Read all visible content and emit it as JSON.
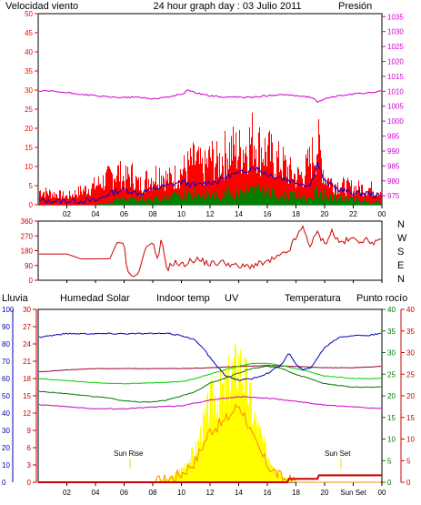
{
  "colors": {
    "wind": "#ff0000",
    "gust": "#0000cc",
    "wind_dark": "#008000",
    "pressure": "#cc00cc",
    "direction": "#cc0000",
    "rain": "#cc0000",
    "humidity": "#0000bb",
    "solar": "#00cc00",
    "indoor": "#990033",
    "uv": "#ff8800",
    "temperature": "#007700",
    "dewpoint": "#cc00cc",
    "sun_bar": "#ffff00",
    "marker": "#ffcc00"
  },
  "header": {
    "title": "24 hour graph day : 03 Julio 2011",
    "wind_label": "Velocidad viento",
    "pressure_label": "Presión"
  },
  "direction_letters": [
    "N",
    "W",
    "S",
    "E",
    "N"
  ],
  "legend": {
    "rain": "Lluvia",
    "humidity": "Humedad",
    "solar": "Solar",
    "indoor": "Indoor temp",
    "uv": "UV",
    "temperature": "Temperatura",
    "dewpoint": "Punto rocío"
  },
  "annotations": {
    "sun_rise": "Sun Rise",
    "sun_set": "Sun Set",
    "sun_set_axis": "Sun Set"
  },
  "chart_data": [
    {
      "type": "line",
      "title": "24 hour graph day : 03 Julio 2011",
      "x_ticks": [
        "02",
        "04",
        "06",
        "08",
        "10",
        "12",
        "14",
        "16",
        "18",
        "20",
        "22",
        "00"
      ],
      "y_left_ticks": [
        "0",
        "5",
        "10",
        "15",
        "20",
        "25",
        "30",
        "35",
        "40",
        "45",
        "50"
      ],
      "y_right_ticks": [
        "975",
        "980",
        "985",
        "990",
        "995",
        "1000",
        "1005",
        "1010",
        "1015",
        "1020",
        "1025",
        "1030",
        "1035"
      ],
      "ylim_left": [
        0,
        50
      ],
      "ylim_right": [
        972,
        1036
      ],
      "series": [
        {
          "name": "Velocidad viento",
          "x": [
            0,
            1,
            2,
            3,
            4,
            5,
            5.5,
            6,
            6.5,
            7,
            7.5,
            8,
            8.5,
            9,
            9.5,
            10,
            10.5,
            11,
            11.5,
            12,
            12.5,
            13,
            13.5,
            14,
            14.5,
            15,
            15.5,
            16,
            16.5,
            17,
            17.5,
            18,
            18.5,
            19,
            19.5,
            20,
            20.5,
            21,
            22,
            23,
            24
          ],
          "values": [
            5,
            4,
            3,
            5,
            7,
            10,
            12,
            9,
            11,
            7,
            9,
            10,
            12,
            9,
            10,
            12,
            14,
            16,
            12,
            17,
            15,
            18,
            20,
            19,
            21,
            24,
            20,
            19,
            16,
            15,
            12,
            10,
            11,
            16,
            22,
            10,
            8,
            7,
            6,
            6,
            5
          ]
        },
        {
          "name": "gust",
          "x": [
            0,
            2,
            4,
            5,
            6,
            7,
            8,
            9,
            10,
            11,
            12,
            12.5,
            13,
            13.5,
            14,
            14.5,
            15,
            15.5,
            16,
            17,
            18,
            19,
            19.5,
            20,
            21,
            22,
            23,
            24
          ],
          "values": [
            1,
            1,
            1,
            3,
            4,
            3,
            4,
            5,
            6,
            5,
            6,
            6,
            7,
            8,
            8,
            9,
            10,
            9,
            8,
            7,
            6,
            5,
            11,
            6,
            4,
            3,
            3,
            2
          ]
        },
        {
          "name": "wind avg",
          "x": [
            0,
            2,
            4,
            5,
            6,
            7,
            8,
            9,
            10,
            11,
            12,
            13,
            14,
            15,
            16,
            17,
            18,
            19,
            19.5,
            20,
            21,
            22,
            23,
            24
          ],
          "values": [
            0,
            0,
            0,
            1,
            2,
            2,
            2,
            3,
            3,
            4,
            3,
            4,
            4,
            5,
            4,
            3,
            3,
            2,
            5,
            3,
            2,
            2,
            1,
            1
          ]
        },
        {
          "name": "Presión",
          "x": [
            0,
            1,
            2,
            3,
            4,
            5,
            6,
            7,
            8,
            9,
            10,
            10.5,
            11,
            12,
            13,
            14,
            15,
            16,
            17,
            18,
            19,
            19.5,
            20,
            21,
            22,
            23,
            24
          ],
          "values": [
            1010,
            1010,
            1009.5,
            1009,
            1008.5,
            1008,
            1008,
            1008,
            1007.5,
            1008,
            1009,
            1010.5,
            1009.5,
            1008.5,
            1008,
            1008,
            1008,
            1008.5,
            1009,
            1008.5,
            1008,
            1006.5,
            1007.5,
            1008.5,
            1009,
            1009.5,
            1010
          ]
        }
      ]
    },
    {
      "type": "line",
      "y_ticks": [
        "0",
        "90",
        "180",
        "270",
        "360"
      ],
      "ylim": [
        0,
        360
      ],
      "series": [
        {
          "name": "wind direction",
          "x": [
            0,
            2,
            3,
            4,
            5,
            5.5,
            6,
            6.2,
            6.6,
            7,
            7.5,
            8,
            8.3,
            8.6,
            9,
            9.5,
            10,
            11,
            12,
            13,
            14,
            15,
            16,
            17,
            17.5,
            18,
            18.5,
            19,
            19.5,
            20,
            20.5,
            21,
            22,
            23,
            24
          ],
          "values": [
            160,
            160,
            130,
            130,
            130,
            230,
            225,
            60,
            20,
            40,
            200,
            230,
            110,
            240,
            70,
            110,
            90,
            130,
            100,
            110,
            80,
            90,
            110,
            150,
            180,
            260,
            320,
            210,
            290,
            220,
            300,
            230,
            250,
            240,
            230
          ]
        }
      ]
    },
    {
      "type": "line",
      "x_ticks": [
        "02",
        "04",
        "06",
        "08",
        "10",
        "12",
        "14",
        "16",
        "18",
        "20",
        "Sun Set",
        "00"
      ],
      "y_left_ticks": [
        "0",
        "10",
        "20",
        "30",
        "40",
        "50",
        "60",
        "70",
        "80",
        "90",
        "100"
      ],
      "y_rain_ticks": [
        "0",
        "3",
        "6",
        "9",
        "12",
        "15",
        "18",
        "21",
        "24",
        "27",
        "30"
      ],
      "y_temp_ticks": [
        "0",
        "5",
        "10",
        "15",
        "20",
        "25",
        "30",
        "35",
        "40"
      ],
      "ylim_humidity": [
        0,
        100
      ],
      "ylim_temp": [
        0,
        40
      ],
      "series": [
        {
          "name": "Humedad",
          "x": [
            0,
            2,
            4,
            6,
            8,
            9,
            10,
            11,
            11.5,
            12,
            12.5,
            13,
            14,
            15,
            16,
            17,
            17.5,
            18,
            18.5,
            19,
            19.5,
            20,
            21,
            22,
            23,
            24
          ],
          "values": [
            84,
            86,
            86,
            86,
            86,
            86,
            85,
            82,
            78,
            72,
            67,
            62,
            59,
            60,
            63,
            68,
            75,
            68,
            65,
            66,
            72,
            78,
            84,
            85,
            85,
            86
          ]
        },
        {
          "name": "Indoor temp",
          "x": [
            0,
            2,
            4,
            6,
            8,
            10,
            12,
            14,
            16,
            18,
            20,
            22,
            24
          ],
          "values": [
            25.5,
            26,
            26.3,
            26.3,
            26.3,
            26.3,
            26.5,
            26.8,
            27,
            26.8,
            26.5,
            26.5,
            26.8
          ]
        },
        {
          "name": "Solar",
          "x": [
            0,
            2,
            4,
            6,
            8,
            10,
            11,
            12,
            13,
            14,
            15,
            16,
            17,
            18,
            19,
            20,
            22,
            24
          ],
          "values": [
            24,
            23.5,
            23,
            22.8,
            23,
            23.3,
            24,
            25,
            26,
            26.8,
            27.5,
            27.5,
            27,
            26.3,
            25.5,
            24.6,
            24,
            24
          ]
        },
        {
          "name": "Temperatura",
          "x": [
            0,
            2,
            4,
            5,
            6,
            7,
            8,
            9,
            10,
            11,
            12,
            13,
            14,
            15,
            16,
            17,
            18,
            19,
            20,
            22,
            24
          ],
          "values": [
            21,
            20.5,
            19.8,
            19.5,
            18.8,
            18.6,
            18.6,
            19,
            20,
            21,
            23,
            24,
            25.3,
            26.4,
            26.8,
            26.4,
            24.9,
            24,
            22.8,
            22,
            22
          ]
        },
        {
          "name": "Punto rocío",
          "x": [
            0,
            2,
            4,
            6,
            8,
            10,
            12,
            14,
            16,
            18,
            20,
            22,
            24
          ],
          "values": [
            18,
            17.5,
            17,
            17,
            17.4,
            17.7,
            19,
            19.8,
            19.5,
            18.7,
            17.9,
            17.5,
            17
          ]
        },
        {
          "name": "UV",
          "x": [
            0,
            7,
            8,
            9,
            10,
            11,
            12,
            13,
            13.5,
            14,
            14.5,
            15,
            16,
            17,
            18,
            19,
            24
          ],
          "values": [
            0,
            0,
            0,
            0.5,
            2,
            5,
            12,
            14,
            16,
            18,
            15,
            10,
            4,
            1,
            0,
            0,
            0
          ]
        },
        {
          "name": "Lluvia",
          "x": [
            0,
            16,
            17,
            17.4,
            17.5,
            19.5,
            19.6,
            24
          ],
          "values": [
            0,
            0,
            0,
            0,
            0.6,
            0.6,
            1.2,
            1.2
          ]
        }
      ]
    }
  ]
}
